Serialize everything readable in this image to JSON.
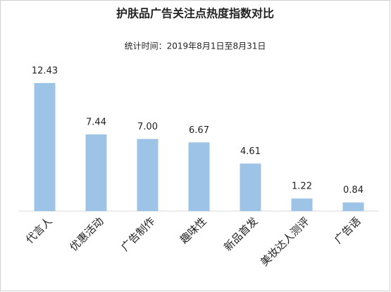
{
  "chart_data": {
    "type": "bar",
    "title": "护肤品广告关注点热度指数对比",
    "subtitle": "统计时间：2019年8月1日至8月31日",
    "categories": [
      "代言人",
      "优惠活动",
      "广告制作",
      "趣味性",
      "新品首发",
      "美妆达人测评",
      "广告语"
    ],
    "values": [
      12.43,
      7.44,
      7.0,
      6.67,
      4.61,
      1.22,
      0.84
    ],
    "value_labels": [
      "12.43",
      "7.44",
      "7.00",
      "6.67",
      "4.61",
      "1.22",
      "0.84"
    ],
    "color": "#9dc3e6"
  }
}
